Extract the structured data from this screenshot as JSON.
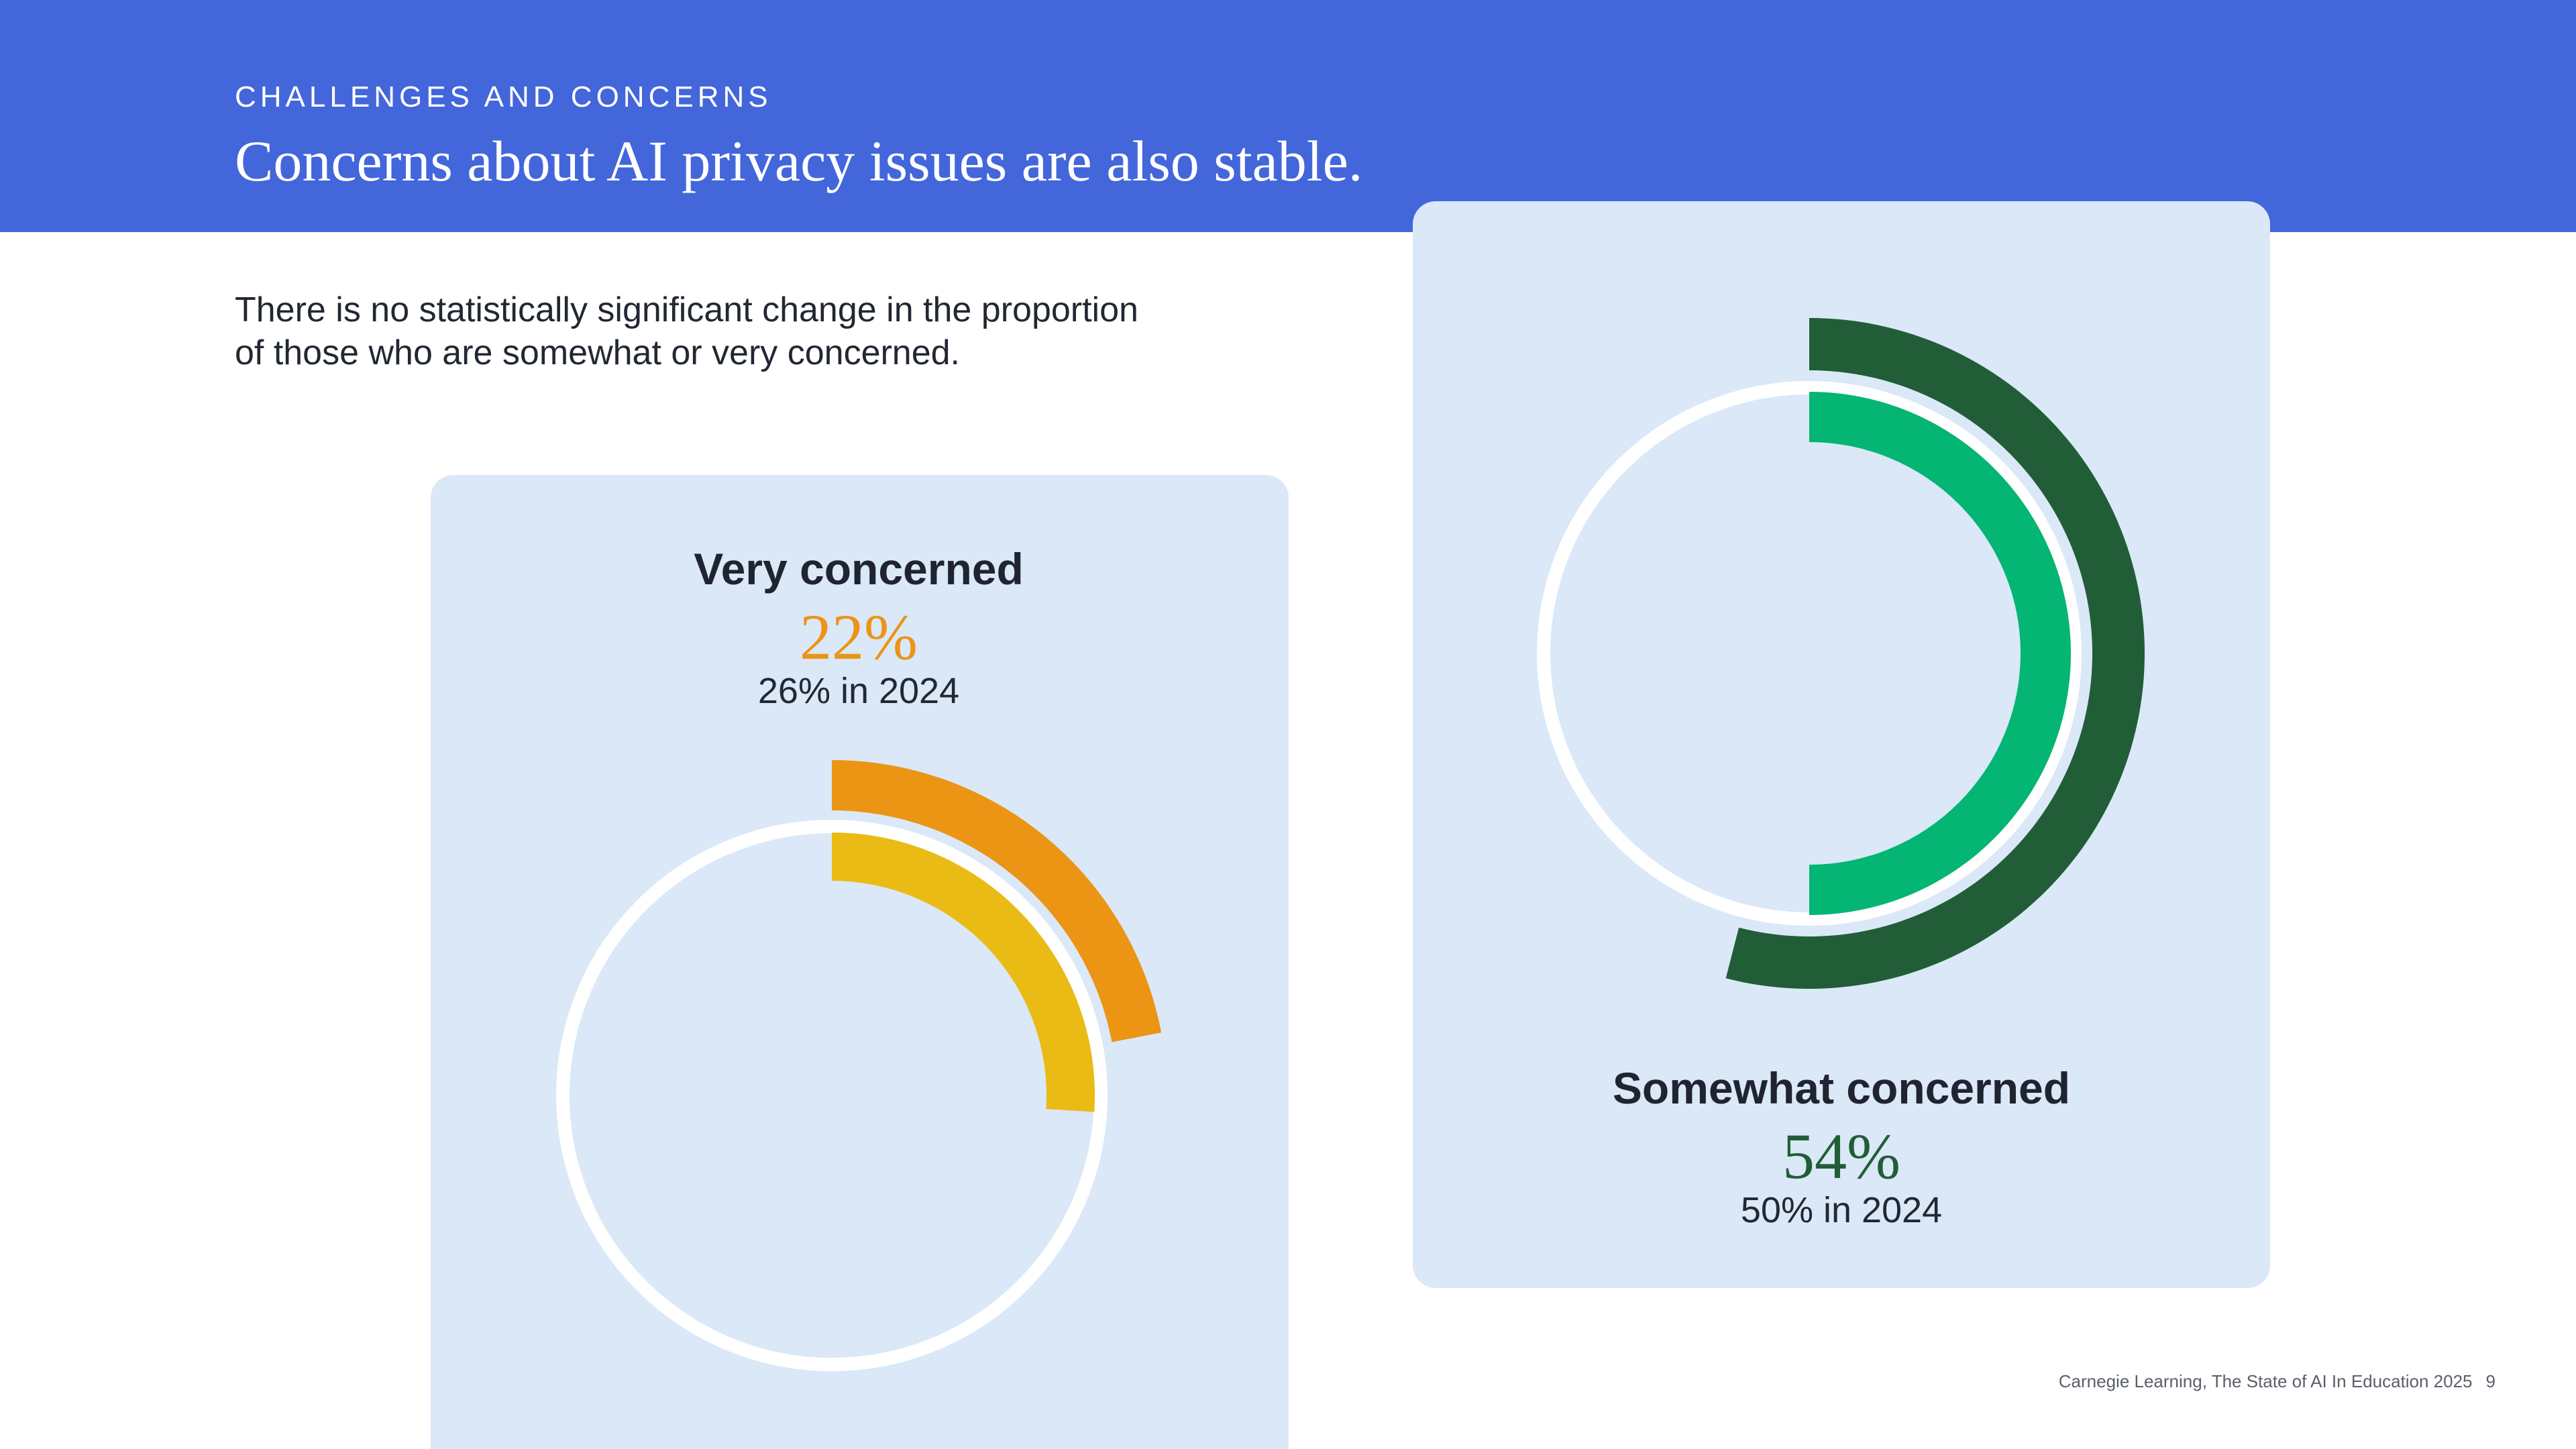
{
  "header": {
    "eyebrow": "CHALLENGES AND CONCERNS",
    "title": "Concerns about AI privacy issues are also stable."
  },
  "subtitle": {
    "line1": "There is no statistically significant change in the proportion",
    "line2": "of those who are somewhat or very concerned."
  },
  "footer": {
    "source": "Carnegie Learning, The State of AI In Education 2025",
    "page_number": "9"
  },
  "colors": {
    "header_bg": "#4366DB",
    "card_bg": "#DAE8F7",
    "very_2025": "#EC9414",
    "very_2024": "#EABB15",
    "somewhat_2025": "#215E37",
    "somewhat_2024": "#04B574",
    "track": "#ffffff"
  },
  "chart_data": [
    {
      "type": "radial-bar",
      "title": "Very concerned",
      "value_label": "22%",
      "previous_label": "26% in 2024",
      "series": [
        {
          "name": "2025",
          "value": 22,
          "color": "#EC9414"
        },
        {
          "name": "2024",
          "value": 26,
          "color": "#EABB15"
        }
      ],
      "max": 100
    },
    {
      "type": "radial-bar",
      "title": "Somewhat concerned",
      "value_label": "54%",
      "previous_label": "50% in 2024",
      "series": [
        {
          "name": "2025",
          "value": 54,
          "color": "#215E37"
        },
        {
          "name": "2024",
          "value": 50,
          "color": "#04B574"
        }
      ],
      "max": 100
    }
  ]
}
